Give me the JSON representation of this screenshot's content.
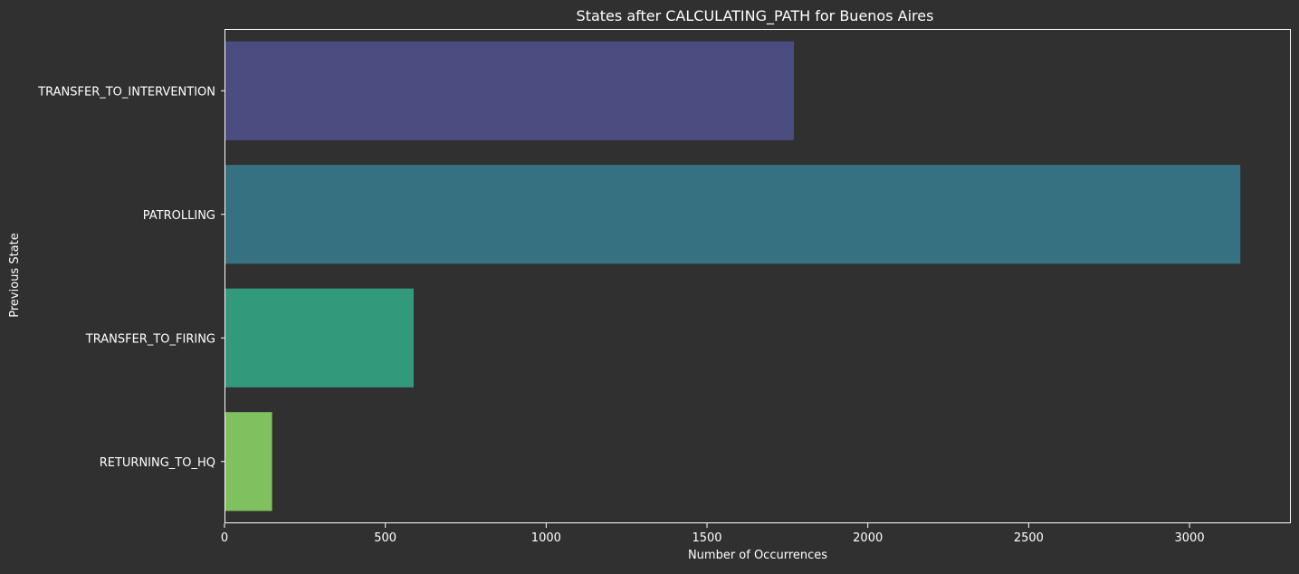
{
  "chart_data": {
    "type": "bar",
    "orientation": "horizontal",
    "title": "States after CALCULATING_PATH for Buenos Aires",
    "xlabel": "Number of Occurrences",
    "ylabel": "Previous State",
    "categories": [
      "TRANSFER_TO_INTERVENTION",
      "PATROLLING",
      "TRANSFER_TO_FIRING",
      "RETURNING_TO_HQ"
    ],
    "values": [
      1770,
      3158,
      588,
      148
    ],
    "colors": [
      "#4b4d80",
      "#367181",
      "#33997b",
      "#7fc05f"
    ],
    "xlim": [
      0,
      3315
    ],
    "xticks": [
      0,
      500,
      1000,
      1500,
      2000,
      2500,
      3000
    ],
    "grid": false,
    "legend": false
  },
  "theme": {
    "background": "#303030",
    "axes_background": "#303030",
    "text_color": "#ffffff",
    "spine_color": "#ffffff"
  }
}
